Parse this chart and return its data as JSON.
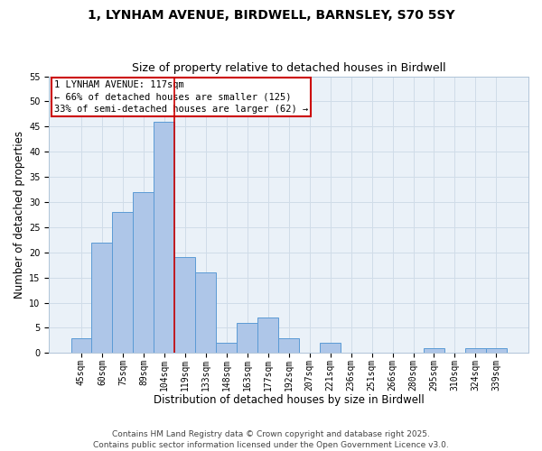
{
  "title_line1": "1, LYNHAM AVENUE, BIRDWELL, BARNSLEY, S70 5SY",
  "title_line2": "Size of property relative to detached houses in Birdwell",
  "xlabel": "Distribution of detached houses by size in Birdwell",
  "ylabel": "Number of detached properties",
  "bar_labels": [
    "45sqm",
    "60sqm",
    "75sqm",
    "89sqm",
    "104sqm",
    "119sqm",
    "133sqm",
    "148sqm",
    "163sqm",
    "177sqm",
    "192sqm",
    "207sqm",
    "221sqm",
    "236sqm",
    "251sqm",
    "266sqm",
    "280sqm",
    "295sqm",
    "310sqm",
    "324sqm",
    "339sqm"
  ],
  "bar_values": [
    3,
    22,
    28,
    32,
    46,
    19,
    16,
    2,
    6,
    7,
    3,
    0,
    2,
    0,
    0,
    0,
    0,
    1,
    0,
    1,
    1
  ],
  "bar_color": "#aec6e8",
  "bar_edgecolor": "#5b9bd5",
  "vline_x_index": 4,
  "vline_color": "#cc0000",
  "annotation_title": "1 LYNHAM AVENUE: 117sqm",
  "annotation_line2": "← 66% of detached houses are smaller (125)",
  "annotation_line3": "33% of semi-detached houses are larger (62) →",
  "annotation_box_edgecolor": "#cc0000",
  "annotation_box_facecolor": "#ffffff",
  "ylim": [
    0,
    55
  ],
  "yticks": [
    0,
    5,
    10,
    15,
    20,
    25,
    30,
    35,
    40,
    45,
    50,
    55
  ],
  "grid_color": "#d0dce8",
  "background_color": "#eaf1f8",
  "footer_line1": "Contains HM Land Registry data © Crown copyright and database right 2025.",
  "footer_line2": "Contains public sector information licensed under the Open Government Licence v3.0.",
  "title_fontsize": 10,
  "subtitle_fontsize": 9,
  "axis_label_fontsize": 8.5,
  "tick_fontsize": 7,
  "annotation_fontsize": 7.5,
  "footer_fontsize": 6.5
}
